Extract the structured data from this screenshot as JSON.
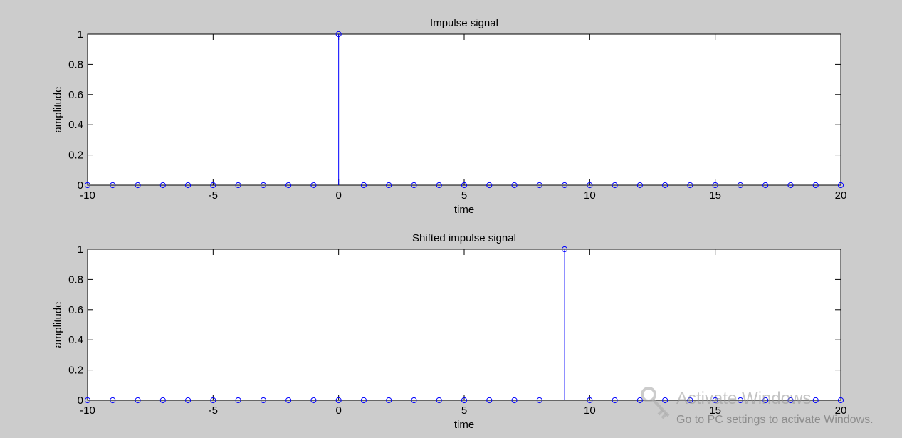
{
  "chart_data": [
    {
      "type": "stem",
      "title": "Impulse signal",
      "xlabel": "time",
      "ylabel": "amplitude",
      "xlim": [
        -10,
        20
      ],
      "ylim": [
        0,
        1
      ],
      "xticks": [
        -10,
        -5,
        0,
        5,
        10,
        15,
        20
      ],
      "yticks": [
        0,
        0.2,
        0.4,
        0.6,
        0.8,
        1
      ],
      "ytick_labels": [
        "0",
        "0.2",
        "0.4",
        "0.6",
        "0.8",
        "1"
      ],
      "x": [
        -10,
        -9,
        -8,
        -7,
        -6,
        -5,
        -4,
        -3,
        -2,
        -1,
        0,
        1,
        2,
        3,
        4,
        5,
        6,
        7,
        8,
        9,
        10,
        11,
        12,
        13,
        14,
        15,
        16,
        17,
        18,
        19,
        20
      ],
      "y": [
        0,
        0,
        0,
        0,
        0,
        0,
        0,
        0,
        0,
        0,
        1,
        0,
        0,
        0,
        0,
        0,
        0,
        0,
        0,
        0,
        0,
        0,
        0,
        0,
        0,
        0,
        0,
        0,
        0,
        0,
        0
      ],
      "color": "#0000ff",
      "marker": "circle"
    },
    {
      "type": "stem",
      "title": "Shifted impulse signal",
      "xlabel": "time",
      "ylabel": "amplitude",
      "xlim": [
        -10,
        20
      ],
      "ylim": [
        0,
        1
      ],
      "xticks": [
        -10,
        -5,
        0,
        5,
        10,
        15,
        20
      ],
      "yticks": [
        0,
        0.2,
        0.4,
        0.6,
        0.8,
        1
      ],
      "ytick_labels": [
        "0",
        "0.2",
        "0.4",
        "0.6",
        "0.8",
        "1"
      ],
      "x": [
        -10,
        -9,
        -8,
        -7,
        -6,
        -5,
        -4,
        -3,
        -2,
        -1,
        0,
        1,
        2,
        3,
        4,
        5,
        6,
        7,
        8,
        9,
        10,
        11,
        12,
        13,
        14,
        15,
        16,
        17,
        18,
        19,
        20
      ],
      "y": [
        0,
        0,
        0,
        0,
        0,
        0,
        0,
        0,
        0,
        0,
        0,
        0,
        0,
        0,
        0,
        0,
        0,
        0,
        0,
        1,
        0,
        0,
        0,
        0,
        0,
        0,
        0,
        0,
        0,
        0,
        0
      ],
      "color": "#0000ff",
      "marker": "circle"
    }
  ],
  "watermark": {
    "title": "Activate Windows",
    "subtitle": "Go to PC settings to activate Windows.",
    "icon": "key-icon"
  }
}
